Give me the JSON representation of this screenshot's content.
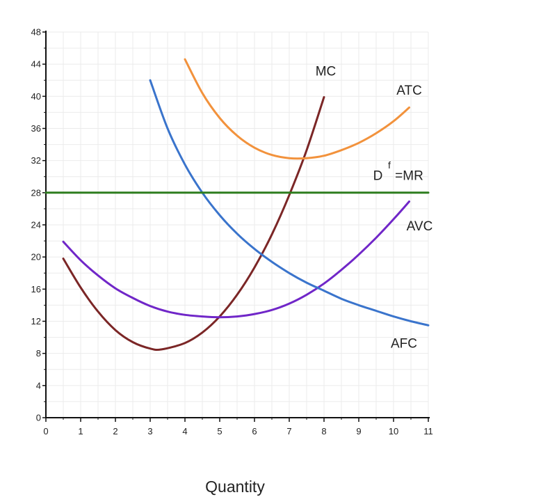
{
  "chart_data": {
    "type": "line",
    "xlabel": "Quantity",
    "ylabel": "",
    "xlim": [
      0,
      11
    ],
    "ylim": [
      0,
      48
    ],
    "xticks": [
      "0",
      "1",
      "2",
      "3",
      "4",
      "5",
      "6",
      "7",
      "8",
      "9",
      "10",
      "11"
    ],
    "yticks": [
      "0",
      "4",
      "8",
      "12",
      "16",
      "20",
      "24",
      "28",
      "32",
      "36",
      "40",
      "44",
      "48"
    ],
    "grid": true,
    "colors": {
      "MC": "#7b2626",
      "ATC": "#f2923c",
      "AVC": "#7026c8",
      "AFC": "#3a74cc",
      "MR": "#2e7d1e"
    },
    "series": [
      {
        "name": "MC",
        "x": [
          0.5,
          1,
          1.5,
          2,
          2.5,
          3,
          3.33,
          4,
          4.5,
          5,
          5.5,
          6,
          6.5,
          7,
          7.5,
          8
        ],
        "y": [
          19.8,
          16.2,
          13.2,
          10.9,
          9.4,
          8.6,
          8.5,
          9.3,
          10.6,
          12.6,
          15.3,
          18.7,
          22.8,
          27.7,
          33.3,
          39.9
        ]
      },
      {
        "name": "ATC",
        "x": [
          4,
          4.5,
          5,
          5.5,
          6,
          6.5,
          7,
          7.5,
          8,
          8.5,
          9,
          9.5,
          10,
          10.45
        ],
        "y": [
          44.6,
          40.4,
          37.3,
          35.1,
          33.6,
          32.7,
          32.3,
          32.3,
          32.6,
          33.3,
          34.2,
          35.4,
          36.9,
          38.6
        ]
      },
      {
        "name": "AVC",
        "x": [
          0.5,
          1,
          1.5,
          2,
          2.5,
          3,
          3.5,
          4,
          4.5,
          5,
          5.5,
          6,
          6.5,
          7,
          7.5,
          8,
          8.5,
          9,
          9.5,
          10,
          10.45
        ],
        "y": [
          21.9,
          19.6,
          17.7,
          16.1,
          14.9,
          13.9,
          13.2,
          12.8,
          12.6,
          12.5,
          12.6,
          12.9,
          13.4,
          14.2,
          15.3,
          16.7,
          18.4,
          20.3,
          22.4,
          24.7,
          26.9
        ]
      },
      {
        "name": "AFC",
        "x": [
          3,
          3.5,
          4,
          4.5,
          5,
          5.5,
          6,
          6.5,
          7,
          7.5,
          8,
          8.5,
          9,
          9.5,
          10,
          10.5,
          11
        ],
        "y": [
          42.0,
          36.0,
          31.5,
          28.0,
          25.2,
          22.9,
          21.0,
          19.4,
          18.0,
          16.8,
          15.8,
          14.8,
          14.0,
          13.3,
          12.6,
          12.0,
          11.5
        ]
      },
      {
        "name": "D f =MR",
        "x": [
          0,
          11
        ],
        "y": [
          28,
          28
        ]
      }
    ],
    "labels": [
      {
        "text": "MC",
        "x": 8.05,
        "y": 42.6
      },
      {
        "text": "ATC",
        "x": 10.45,
        "y": 40.2
      },
      {
        "text": "D",
        "x": 9.55,
        "y": 29.6
      },
      {
        "text": "f",
        "x": 9.88,
        "y": 31.0
      },
      {
        "text": "=MR",
        "x": 10.45,
        "y": 29.6
      },
      {
        "text": "AVC",
        "x": 10.75,
        "y": 23.3
      },
      {
        "text": "AFC",
        "x": 10.3,
        "y": 8.7
      }
    ]
  }
}
